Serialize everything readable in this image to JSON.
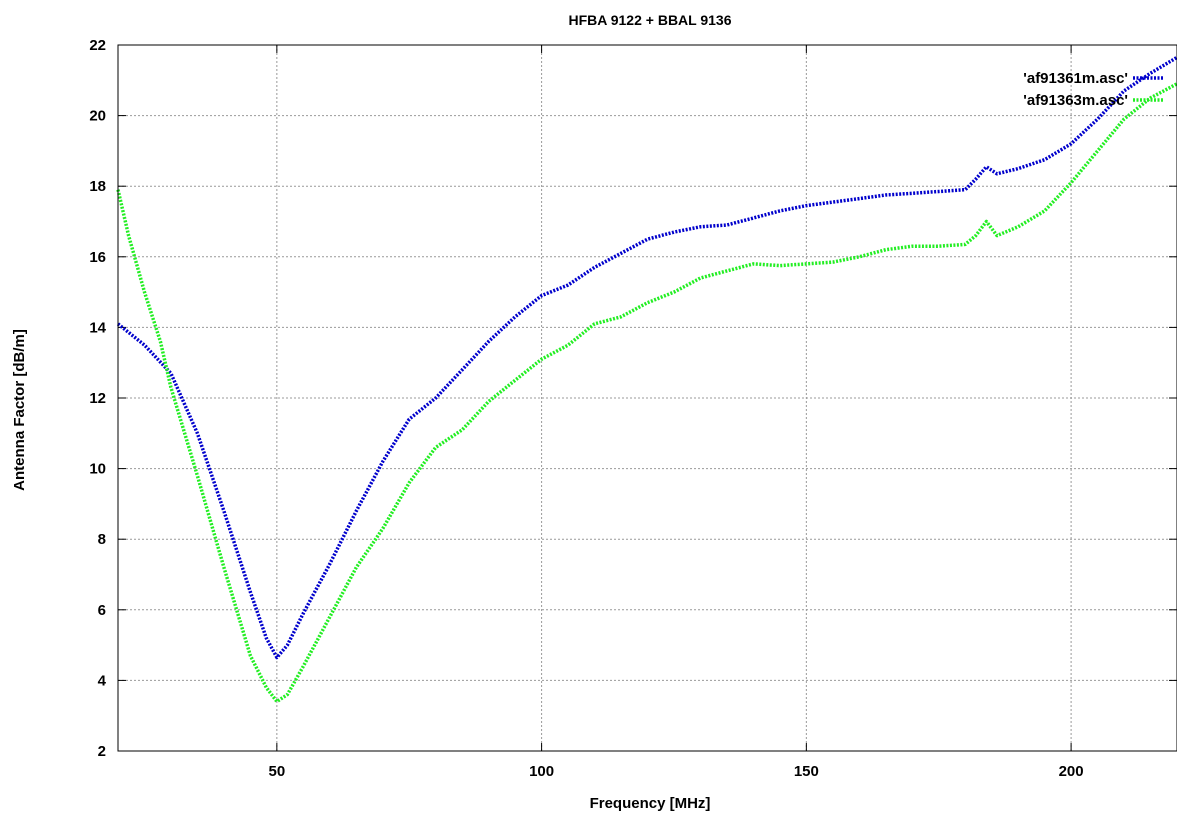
{
  "chart_data": {
    "type": "line",
    "title": "HFBA 9122 + BBAL 9136",
    "xlabel": "Frequency [MHz]",
    "ylabel": "Antenna Factor [dB/m]",
    "xlim": [
      20,
      220
    ],
    "ylim": [
      2,
      22
    ],
    "x_ticks": [
      50,
      100,
      150,
      200
    ],
    "y_ticks": [
      2,
      4,
      6,
      8,
      10,
      12,
      14,
      16,
      18,
      20,
      22
    ],
    "grid": true,
    "legend_position": "top-right",
    "series": [
      {
        "name": "'af91361m.asc'",
        "color": "#0000cc",
        "points": [
          [
            20,
            14.1
          ],
          [
            25,
            13.5
          ],
          [
            30,
            12.7
          ],
          [
            35,
            11.0
          ],
          [
            40,
            8.8
          ],
          [
            45,
            6.5
          ],
          [
            48,
            5.2
          ],
          [
            50,
            4.65
          ],
          [
            52,
            5.0
          ],
          [
            55,
            5.9
          ],
          [
            60,
            7.3
          ],
          [
            65,
            8.8
          ],
          [
            70,
            10.2
          ],
          [
            75,
            11.4
          ],
          [
            80,
            12.0
          ],
          [
            85,
            12.8
          ],
          [
            90,
            13.6
          ],
          [
            95,
            14.3
          ],
          [
            100,
            14.9
          ],
          [
            105,
            15.2
          ],
          [
            110,
            15.7
          ],
          [
            115,
            16.1
          ],
          [
            120,
            16.5
          ],
          [
            125,
            16.7
          ],
          [
            130,
            16.85
          ],
          [
            135,
            16.9
          ],
          [
            140,
            17.1
          ],
          [
            145,
            17.3
          ],
          [
            150,
            17.45
          ],
          [
            155,
            17.55
          ],
          [
            160,
            17.65
          ],
          [
            165,
            17.75
          ],
          [
            170,
            17.8
          ],
          [
            175,
            17.85
          ],
          [
            180,
            17.9
          ],
          [
            182,
            18.2
          ],
          [
            184,
            18.55
          ],
          [
            186,
            18.35
          ],
          [
            190,
            18.5
          ],
          [
            195,
            18.75
          ],
          [
            200,
            19.2
          ],
          [
            205,
            19.9
          ],
          [
            210,
            20.7
          ],
          [
            215,
            21.2
          ],
          [
            220,
            21.65
          ]
        ]
      },
      {
        "name": "'af91363m.asc'",
        "color": "#22ee22",
        "points": [
          [
            20,
            17.9
          ],
          [
            22,
            16.6
          ],
          [
            25,
            15.0
          ],
          [
            28,
            13.6
          ],
          [
            30,
            12.3
          ],
          [
            35,
            9.8
          ],
          [
            40,
            7.2
          ],
          [
            45,
            4.7
          ],
          [
            48,
            3.8
          ],
          [
            50,
            3.4
          ],
          [
            52,
            3.6
          ],
          [
            55,
            4.4
          ],
          [
            60,
            5.8
          ],
          [
            65,
            7.2
          ],
          [
            70,
            8.3
          ],
          [
            75,
            9.6
          ],
          [
            80,
            10.6
          ],
          [
            85,
            11.1
          ],
          [
            90,
            11.9
          ],
          [
            95,
            12.5
          ],
          [
            100,
            13.1
          ],
          [
            105,
            13.5
          ],
          [
            110,
            14.1
          ],
          [
            115,
            14.3
          ],
          [
            120,
            14.7
          ],
          [
            125,
            15.0
          ],
          [
            130,
            15.4
          ],
          [
            135,
            15.6
          ],
          [
            140,
            15.8
          ],
          [
            145,
            15.75
          ],
          [
            150,
            15.8
          ],
          [
            155,
            15.85
          ],
          [
            160,
            16.0
          ],
          [
            165,
            16.2
          ],
          [
            170,
            16.3
          ],
          [
            175,
            16.3
          ],
          [
            180,
            16.35
          ],
          [
            182,
            16.6
          ],
          [
            184,
            17.0
          ],
          [
            186,
            16.6
          ],
          [
            190,
            16.85
          ],
          [
            195,
            17.3
          ],
          [
            200,
            18.1
          ],
          [
            205,
            19.0
          ],
          [
            210,
            19.9
          ],
          [
            215,
            20.5
          ],
          [
            220,
            20.9
          ]
        ]
      }
    ]
  }
}
